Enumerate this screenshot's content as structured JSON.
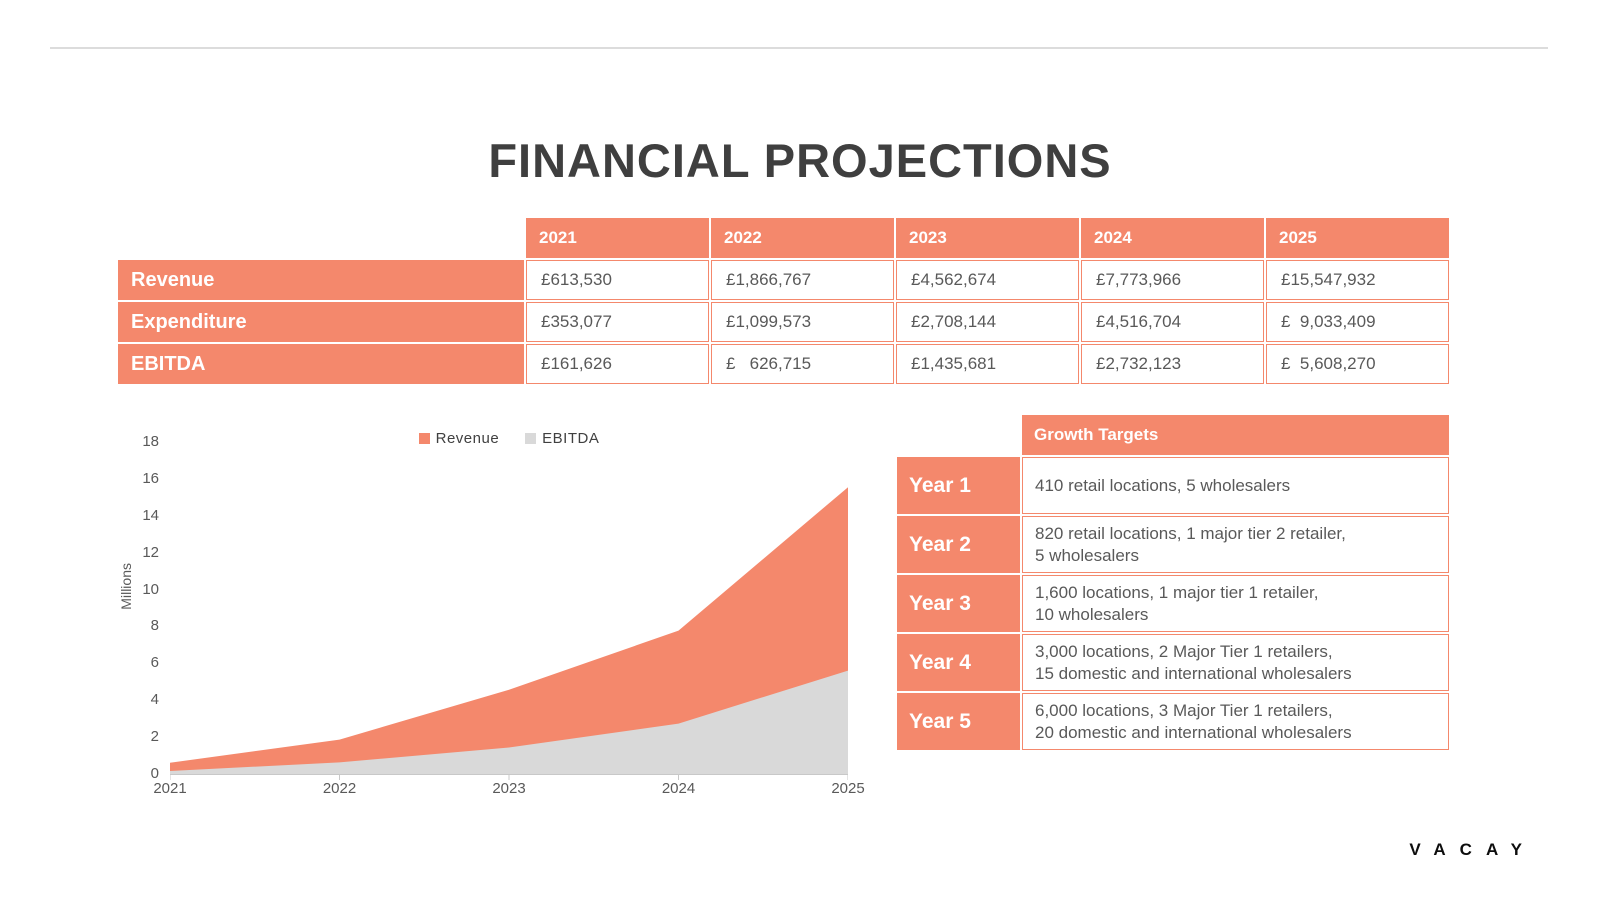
{
  "slide": {
    "title": "FINANCIAL PROJECTIONS",
    "brand": "VACAY"
  },
  "colors": {
    "accent": "#F4886C",
    "series_gray": "#D9D9D9",
    "text_dark": "#595959",
    "title_color": "#3F3F3F",
    "axis_line": "#C8C8C8"
  },
  "financial_table": {
    "years": [
      "2021",
      "2022",
      "2023",
      "2024",
      "2025"
    ],
    "rows": [
      {
        "label": "Revenue",
        "values": [
          "£613,530",
          "£1,866,767",
          "£4,562,674",
          "£7,773,966",
          "£15,547,932"
        ]
      },
      {
        "label": "Expenditure",
        "values": [
          "£353,077",
          "£1,099,573",
          "£2,708,144",
          "£4,516,704",
          "£  9,033,409"
        ]
      },
      {
        "label": "EBITDA",
        "values": [
          "£161,626",
          "£   626,715",
          "£1,435,681",
          "£2,732,123",
          "£  5,608,270"
        ]
      }
    ]
  },
  "chart_data": {
    "type": "area",
    "x": [
      2021,
      2022,
      2023,
      2024,
      2025
    ],
    "series": [
      {
        "name": "Revenue",
        "color": "#F4886C",
        "values": [
          0.61353,
          1.866767,
          4.562674,
          7.773966,
          15.547932
        ]
      },
      {
        "name": "EBITDA",
        "color": "#D9D9D9",
        "values": [
          0.161626,
          0.626715,
          1.435681,
          2.732123,
          5.60827
        ]
      }
    ],
    "title": "",
    "xlabel": "",
    "ylabel": "Millions",
    "ylim": [
      0,
      18
    ],
    "ytick_step": 2,
    "grid": false,
    "legend_position": "top-center"
  },
  "growth_table": {
    "header": "Growth Targets",
    "rows": [
      {
        "label": "Year 1",
        "text": "410 retail locations, 5 wholesalers"
      },
      {
        "label": "Year 2",
        "text": "820 retail locations, 1 major tier 2 retailer,\n5 wholesalers"
      },
      {
        "label": "Year 3",
        "text": "1,600 locations, 1 major tier 1 retailer,\n10 wholesalers"
      },
      {
        "label": "Year 4",
        "text": "3,000 locations, 2 Major Tier 1 retailers,\n15 domestic and international wholesalers"
      },
      {
        "label": "Year 5",
        "text": "6,000 locations, 3 Major Tier 1 retailers,\n20 domestic and international wholesalers"
      }
    ]
  }
}
